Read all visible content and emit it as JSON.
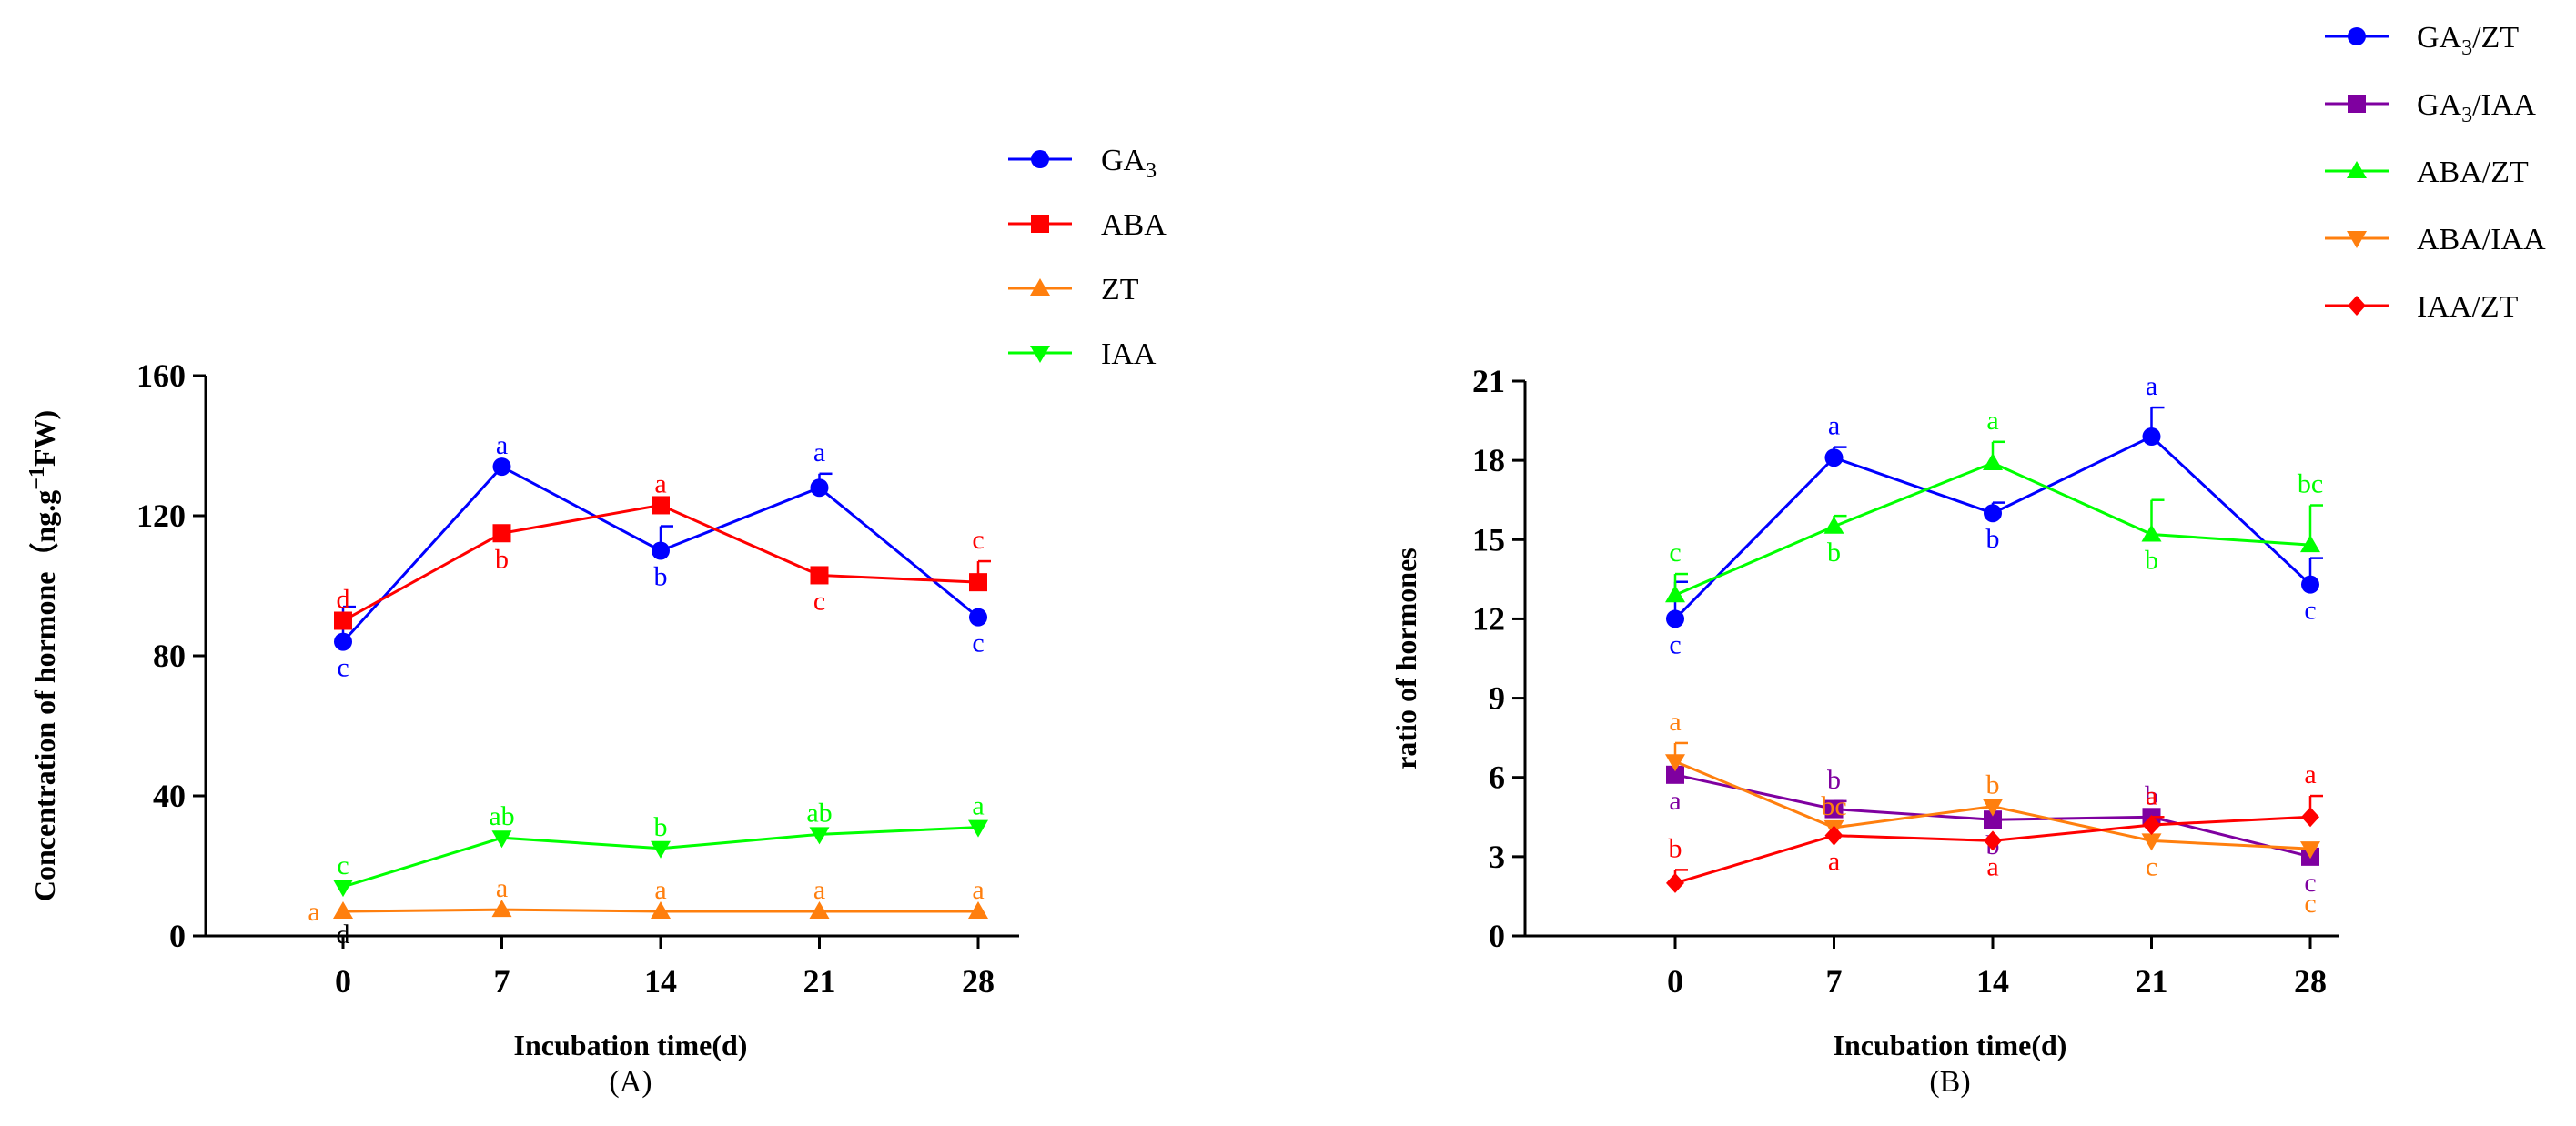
{
  "chart_data": [
    {
      "type": "line",
      "panel_label": "(A)",
      "xlabel": "Incubation time(d)",
      "ylabel": "Concentration of hormone（ng.g⁻¹FW)",
      "ylabel_parts": {
        "pre": "Concentration of hormone（ng.g",
        "sup": "−1",
        "post": "FW)"
      },
      "ylim": [
        0,
        160
      ],
      "yticks": [
        "0",
        "40",
        "80",
        "120",
        "160"
      ],
      "categories": [
        "0",
        "7",
        "14",
        "21",
        "28"
      ],
      "legend": [
        {
          "name": "GA",
          "sub": "3",
          "color": "#0000ff",
          "marker": "circle"
        },
        {
          "name": "ABA",
          "sub": "",
          "color": "#ff0000",
          "marker": "square"
        },
        {
          "name": "ZT",
          "sub": "",
          "color": "#ff7f0e",
          "marker": "triangle-up"
        },
        {
          "name": "IAA",
          "sub": "",
          "color": "#00ff00",
          "marker": "triangle-down"
        }
      ],
      "series": [
        {
          "name": "GA3",
          "color": "#0000ff",
          "marker": "circle",
          "values": [
            84,
            134,
            110,
            128,
            91
          ],
          "errors": [
            10,
            0,
            7,
            4,
            0
          ],
          "letters": [
            "c",
            "a",
            "b",
            "a",
            "c"
          ],
          "letter_pos": [
            "below",
            "above",
            "below",
            "above",
            "below"
          ]
        },
        {
          "name": "ABA",
          "color": "#ff0000",
          "marker": "square",
          "values": [
            90,
            115,
            123,
            103,
            101
          ],
          "errors": [
            0,
            0,
            0,
            0,
            6
          ],
          "letters": [
            "d",
            "b",
            "a",
            "c",
            "c"
          ],
          "letter_pos": [
            "above",
            "below",
            "above",
            "below",
            "above"
          ]
        },
        {
          "name": "ZT",
          "color": "#ff7f0e",
          "marker": "triangle-up",
          "values": [
            7,
            7.5,
            7,
            7,
            7
          ],
          "errors": [
            0,
            0,
            0,
            0,
            0
          ],
          "letters": [
            "a",
            "a",
            "a",
            "a",
            "a"
          ],
          "letter_pos": [
            "left",
            "above",
            "above",
            "above",
            "above"
          ]
        },
        {
          "name": "IAA",
          "color": "#00ff00",
          "marker": "triangle-down",
          "values": [
            14,
            28,
            25,
            29,
            31
          ],
          "errors": [
            0,
            0,
            0,
            0,
            0
          ],
          "letters": [
            "c",
            "ab",
            "b",
            "ab",
            "a"
          ],
          "letter_pos": [
            "above",
            "above",
            "above",
            "above",
            "above"
          ]
        }
      ],
      "extra_letters": [
        {
          "text": "d",
          "cat": 0,
          "value": 0,
          "color": "#000000"
        }
      ]
    },
    {
      "type": "line",
      "panel_label": "(B)",
      "xlabel": "Incubation time(d)",
      "ylabel": "ratio of hormones",
      "ylim": [
        0,
        21
      ],
      "yticks": [
        "0",
        "3",
        "6",
        "9",
        "12",
        "15",
        "18",
        "21"
      ],
      "categories": [
        "0",
        "7",
        "14",
        "21",
        "28"
      ],
      "legend": [
        {
          "name": "GA",
          "sub": "3",
          "suffix": "/ZT",
          "color": "#0000ff",
          "marker": "circle"
        },
        {
          "name": "GA",
          "sub": "3",
          "suffix": "/IAA",
          "color": "#7f00a0",
          "marker": "square"
        },
        {
          "name": "ABA/ZT",
          "sub": "",
          "suffix": "",
          "color": "#00ff00",
          "marker": "triangle-up"
        },
        {
          "name": "ABA/IAA",
          "sub": "",
          "suffix": "",
          "color": "#ff7f0e",
          "marker": "triangle-down"
        },
        {
          "name": "IAA/ZT",
          "sub": "",
          "suffix": "",
          "color": "#ff0000",
          "marker": "diamond"
        }
      ],
      "series": [
        {
          "name": "GA3/ZT",
          "color": "#0000ff",
          "marker": "circle",
          "values": [
            12.0,
            18.1,
            16.0,
            18.9,
            13.3
          ],
          "errors": [
            1.4,
            0.4,
            0.4,
            1.1,
            1.0
          ],
          "letters": [
            "c",
            "a",
            "b",
            "a",
            "c"
          ],
          "letter_pos": [
            "below",
            "above",
            "below",
            "above",
            "below"
          ]
        },
        {
          "name": "GA3/IAA",
          "color": "#7f00a0",
          "marker": "square",
          "values": [
            6.1,
            4.8,
            4.4,
            4.5,
            3.0
          ],
          "errors": [
            0,
            0.3,
            0,
            0,
            0
          ],
          "letters": [
            "a",
            "b",
            "b",
            "b",
            "c"
          ],
          "letter_pos": [
            "below",
            "above",
            "below",
            "above",
            "below"
          ]
        },
        {
          "name": "ABA/ZT",
          "color": "#00ff00",
          "marker": "triangle-up",
          "values": [
            12.9,
            15.5,
            17.9,
            15.2,
            14.8
          ],
          "errors": [
            0.8,
            0.4,
            0.8,
            1.3,
            1.5
          ],
          "letters": [
            "c",
            "b",
            "a",
            "b",
            "bc"
          ],
          "letter_pos": [
            "above",
            "below",
            "above",
            "below",
            "above"
          ]
        },
        {
          "name": "ABA/IAA",
          "color": "#ff7f0e",
          "marker": "triangle-down",
          "values": [
            6.6,
            4.1,
            4.9,
            3.6,
            3.3
          ],
          "errors": [
            0.7,
            0,
            0,
            0,
            0
          ],
          "letters": [
            "a",
            "bc",
            "b",
            "c",
            "c"
          ],
          "letter_pos": [
            "above",
            "above",
            "above",
            "below",
            "below2"
          ]
        },
        {
          "name": "IAA/ZT",
          "color": "#ff0000",
          "marker": "diamond",
          "values": [
            2.0,
            3.8,
            3.6,
            4.2,
            4.5
          ],
          "errors": [
            0.5,
            0,
            0,
            0.3,
            0.8
          ],
          "letters": [
            "b",
            "a",
            "a",
            "a",
            "a"
          ],
          "letter_pos": [
            "above",
            "below",
            "below",
            "above",
            "above"
          ]
        }
      ],
      "extra_letters": []
    }
  ]
}
